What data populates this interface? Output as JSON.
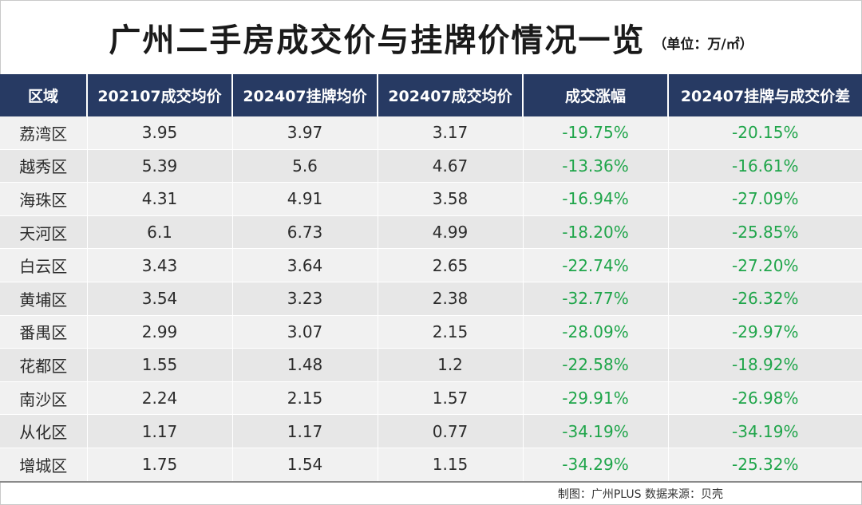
{
  "title": "广州二手房成交价与挂牌价情况一览",
  "unit": "（单位：万/㎡）",
  "columns": [
    "区域",
    "202107成交均价",
    "202407挂牌均价",
    "202407成交均价",
    "成交涨幅",
    "202407挂牌与成交价差"
  ],
  "rows": [
    [
      "荔湾区",
      "3.95",
      "3.97",
      "3.17",
      "-19.75%",
      "-20.15%"
    ],
    [
      "越秀区",
      "5.39",
      "5.6",
      "4.67",
      "-13.36%",
      "-16.61%"
    ],
    [
      "海珠区",
      "4.31",
      "4.91",
      "3.58",
      "-16.94%",
      "-27.09%"
    ],
    [
      "天河区",
      "6.1",
      "6.73",
      "4.99",
      "-18.20%",
      "-25.85%"
    ],
    [
      "白云区",
      "3.43",
      "3.64",
      "2.65",
      "-22.74%",
      "-27.20%"
    ],
    [
      "黄埔区",
      "3.54",
      "3.23",
      "2.38",
      "-32.77%",
      "-26.32%"
    ],
    [
      "番禺区",
      "2.99",
      "3.07",
      "2.15",
      "-28.09%",
      "-29.97%"
    ],
    [
      "花都区",
      "1.55",
      "1.48",
      "1.2",
      "-22.58%",
      "-18.92%"
    ],
    [
      "南沙区",
      "2.24",
      "2.15",
      "1.57",
      "-29.91%",
      "-26.98%"
    ],
    [
      "从化区",
      "1.17",
      "1.17",
      "0.77",
      "-34.19%",
      "-34.19%"
    ],
    [
      "增城区",
      "1.75",
      "1.54",
      "1.15",
      "-34.29%",
      "-25.32%"
    ]
  ],
  "footer": "制图：广州PLUS  数据来源：贝壳",
  "colors": {
    "header_bg": "#273a63",
    "negative_value": "#1fa54a"
  }
}
